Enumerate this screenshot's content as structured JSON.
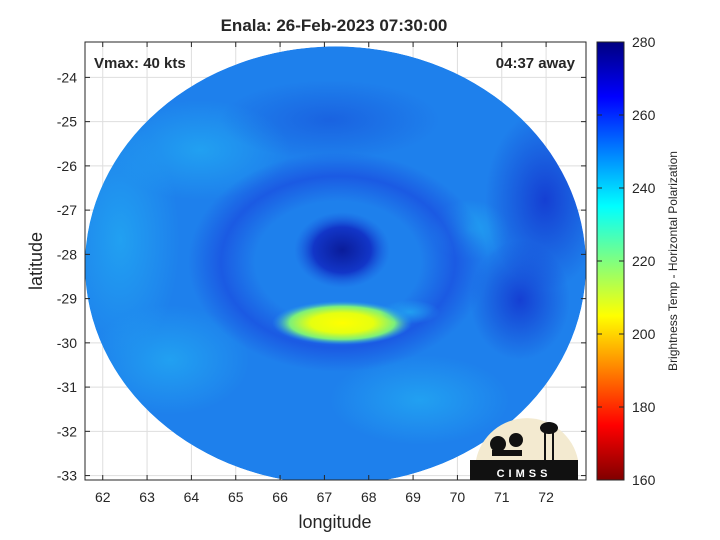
{
  "chart_data": {
    "type": "heatmap",
    "title": "Enala: 26-Feb-2023 07:30:00",
    "annotations": {
      "vmax": "Vmax: 40 kts",
      "time_away": "04:37 away"
    },
    "xlabel": "longitude",
    "ylabel": "latitude",
    "xlim": [
      61.6,
      72.9
    ],
    "ylim": [
      -33.1,
      -23.2
    ],
    "x_ticks": [
      62,
      63,
      64,
      65,
      66,
      67,
      68,
      69,
      70,
      71,
      72
    ],
    "y_ticks": [
      -24,
      -25,
      -26,
      -27,
      -28,
      -29,
      -30,
      -31,
      -32,
      -33
    ],
    "grid": true,
    "swath": {
      "center": [
        67.25,
        -28.25
      ],
      "radius_x": 5.65,
      "radius_y": 4.95
    },
    "storm_center": [
      67.4,
      -27.9
    ],
    "features": [
      {
        "name": "eye",
        "lon": 67.4,
        "lat": -27.9,
        "value": 266
      },
      {
        "name": "warm-rainband",
        "lon": 67.4,
        "lat": -29.55,
        "value": 204
      },
      {
        "name": "cold-edge-northeast",
        "lon": 71.8,
        "lat": -26.2,
        "value": 268
      }
    ],
    "background_value": 250,
    "colorbar": {
      "label": "Brightness Temp - Horizontal Polarization",
      "min": 160,
      "max": 280,
      "ticks": [
        160,
        180,
        200,
        220,
        240,
        260,
        280
      ],
      "colormap": [
        "#800000",
        "#ff0000",
        "#ff8000",
        "#ffff00",
        "#80ff80",
        "#00ffff",
        "#0080ff",
        "#0000ff",
        "#000080"
      ]
    },
    "logo": {
      "text": "CIMSS"
    }
  }
}
